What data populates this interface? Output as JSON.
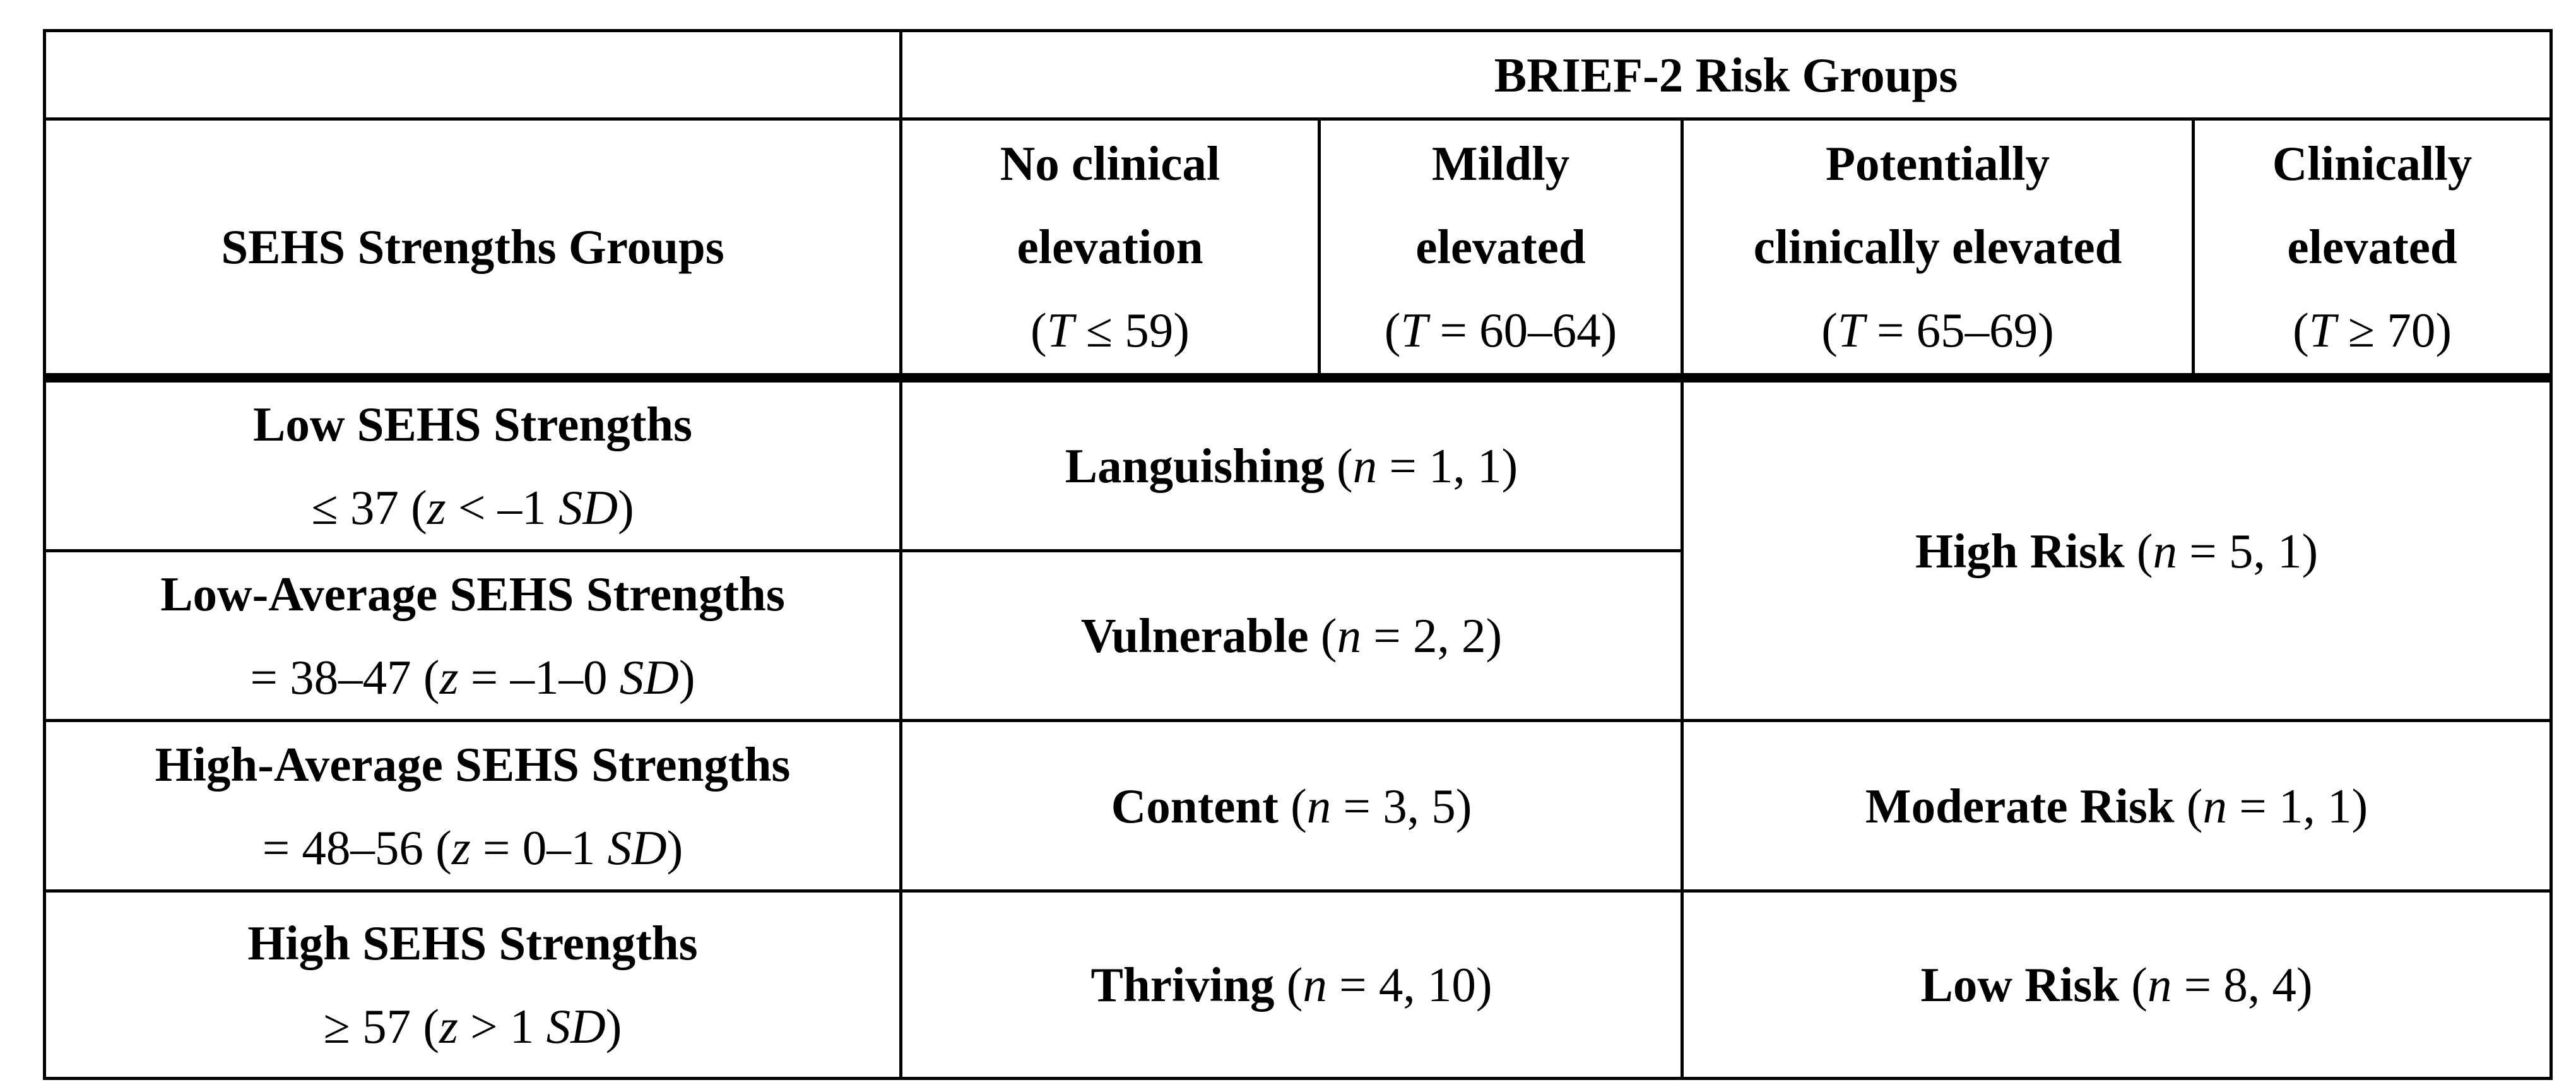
{
  "meta": {
    "colors": {
      "background": "#ffffff",
      "text": "#000000",
      "border": "#000000"
    },
    "table_kind": "crosstab of SEHS Strengths Groups by BRIEF-2 Risk Groups"
  },
  "cells": {
    "corner": "",
    "brief2": [
      {
        "t": "BRIEF-2 Risk Groups",
        "s": "b"
      }
    ],
    "sehs": [
      {
        "t": "SEHS Strengths Groups",
        "s": "b"
      }
    ],
    "h_no_clinical": {
      "lines": [
        [
          {
            "t": "No clinical",
            "s": "b"
          }
        ],
        [
          {
            "t": "elevation",
            "s": "b"
          }
        ],
        [
          {
            "t": "(",
            "s": ""
          },
          {
            "t": "T",
            "s": "i"
          },
          {
            "t": " ≤ 59)",
            "s": ""
          }
        ]
      ]
    },
    "h_mildly": {
      "lines": [
        [
          {
            "t": "Mildly",
            "s": "b"
          }
        ],
        [
          {
            "t": "elevated",
            "s": "b"
          }
        ],
        [
          {
            "t": "(",
            "s": ""
          },
          {
            "t": "T",
            "s": "i"
          },
          {
            "t": " = 60–64)",
            "s": ""
          }
        ]
      ]
    },
    "h_potentially": {
      "lines": [
        [
          {
            "t": "Potentially",
            "s": "b"
          }
        ],
        [
          {
            "t": "clinically elevated",
            "s": "b"
          }
        ],
        [
          {
            "t": "(",
            "s": ""
          },
          {
            "t": "T",
            "s": "i"
          },
          {
            "t": " = 65–69)",
            "s": ""
          }
        ]
      ]
    },
    "h_clinically": {
      "lines": [
        [
          {
            "t": "Clinically",
            "s": "b"
          }
        ],
        [
          {
            "t": "elevated",
            "s": "b"
          }
        ],
        [
          {
            "t": "(",
            "s": ""
          },
          {
            "t": "T",
            "s": "i"
          },
          {
            "t": " ≥ 70)",
            "s": ""
          }
        ]
      ]
    },
    "r1_group": {
      "lines": [
        [
          {
            "t": "Low SEHS Strengths",
            "s": "b"
          }
        ],
        [
          {
            "t": "≤ 37 (",
            "s": ""
          },
          {
            "t": "z",
            "s": "i"
          },
          {
            "t": " < –1 ",
            "s": ""
          },
          {
            "t": "SD",
            "s": "i"
          },
          {
            "t": ")",
            "s": ""
          }
        ]
      ]
    },
    "r1_outcome": [
      {
        "t": "Languishing ",
        "s": "b"
      },
      {
        "t": "(",
        "s": ""
      },
      {
        "t": "n",
        "s": "i"
      },
      {
        "t": " = 1, 1)",
        "s": ""
      }
    ],
    "r12_risk": [
      {
        "t": "High Risk ",
        "s": "b"
      },
      {
        "t": "(",
        "s": ""
      },
      {
        "t": "n",
        "s": "i"
      },
      {
        "t": " = 5, 1)",
        "s": ""
      }
    ],
    "r2_group": {
      "lines": [
        [
          {
            "t": "Low-Average SEHS Strengths",
            "s": "b"
          }
        ],
        [
          {
            "t": "= 38–47 (",
            "s": ""
          },
          {
            "t": "z",
            "s": "i"
          },
          {
            "t": " = –1–0 ",
            "s": ""
          },
          {
            "t": "SD",
            "s": "i"
          },
          {
            "t": ")",
            "s": ""
          }
        ]
      ]
    },
    "r2_outcome": [
      {
        "t": "Vulnerable ",
        "s": "b"
      },
      {
        "t": "(",
        "s": ""
      },
      {
        "t": "n",
        "s": "i"
      },
      {
        "t": " = 2, 2)",
        "s": ""
      }
    ],
    "r3_group": {
      "lines": [
        [
          {
            "t": "High-Average SEHS Strengths",
            "s": "b"
          }
        ],
        [
          {
            "t": "= 48–56 (",
            "s": ""
          },
          {
            "t": "z",
            "s": "i"
          },
          {
            "t": " = 0–1 ",
            "s": ""
          },
          {
            "t": "SD",
            "s": "i"
          },
          {
            "t": ")",
            "s": ""
          }
        ]
      ]
    },
    "r3_outcome": [
      {
        "t": "Content ",
        "s": "b"
      },
      {
        "t": "(",
        "s": ""
      },
      {
        "t": "n",
        "s": "i"
      },
      {
        "t": " = 3, 5)",
        "s": ""
      }
    ],
    "r3_risk": [
      {
        "t": "Moderate Risk ",
        "s": "b"
      },
      {
        "t": "(",
        "s": ""
      },
      {
        "t": "n",
        "s": "i"
      },
      {
        "t": " = 1, 1)",
        "s": ""
      }
    ],
    "r4_group": {
      "lines": [
        [
          {
            "t": "High SEHS Strengths",
            "s": "b"
          }
        ],
        [
          {
            "t": "≥ 57 (",
            "s": ""
          },
          {
            "t": "z",
            "s": "i"
          },
          {
            "t": " > 1 ",
            "s": ""
          },
          {
            "t": "SD",
            "s": "i"
          },
          {
            "t": ")",
            "s": ""
          }
        ]
      ]
    },
    "r4_outcome": [
      {
        "t": "Thriving ",
        "s": "b"
      },
      {
        "t": "(",
        "s": ""
      },
      {
        "t": "n",
        "s": "i"
      },
      {
        "t": " = 4, 10)",
        "s": ""
      }
    ],
    "r4_risk": [
      {
        "t": "Low Risk ",
        "s": "b"
      },
      {
        "t": "(",
        "s": ""
      },
      {
        "t": "n",
        "s": "i"
      },
      {
        "t": " = 8, 4)",
        "s": ""
      }
    ]
  }
}
